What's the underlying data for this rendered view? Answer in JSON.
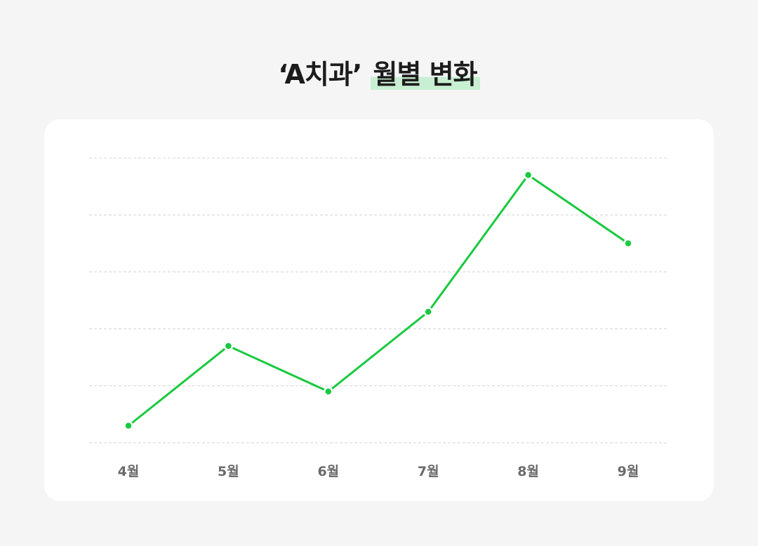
{
  "title": {
    "prefix": "‘A치과’",
    "highlight": "월별 변화"
  },
  "colors": {
    "line": "#19c93f",
    "highlight": "#c9efd2",
    "grid": "#d4d4d4",
    "background": "#f5f5f5",
    "card": "#ffffff"
  },
  "chart_data": {
    "type": "line",
    "title": "‘A치과’ 월별 변화",
    "xlabel": "",
    "ylabel": "",
    "categories": [
      "4월",
      "5월",
      "6월",
      "7월",
      "8월",
      "9월"
    ],
    "series": [
      {
        "values": [
          0.3,
          1.7,
          0.9,
          2.3,
          4.7,
          3.5
        ]
      }
    ],
    "ylim": [
      0,
      5
    ],
    "grid": true,
    "y_tick_labels_shown": false,
    "legend": "none"
  }
}
